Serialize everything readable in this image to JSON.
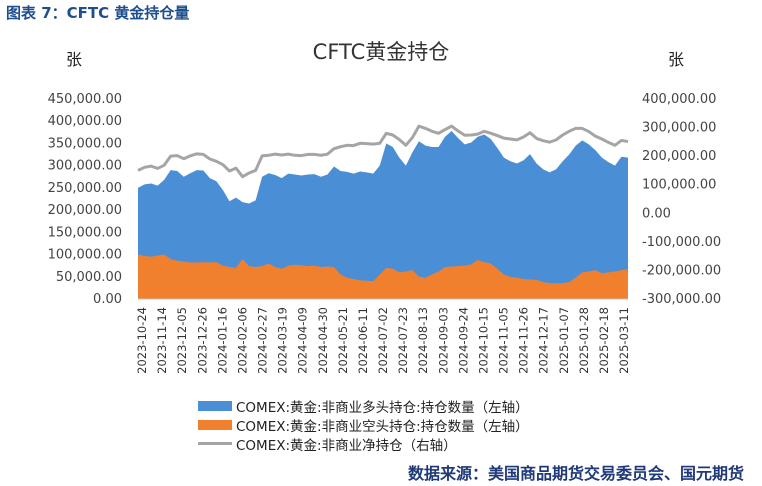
{
  "figure_header": "图表 7：CFTC 黄金持仓量",
  "left_unit": "张",
  "right_unit": "张",
  "source": "数据来源：美国商品期货交易委员会、国元期货",
  "colors": {
    "long": "#4a8fd6",
    "short": "#f07f2e",
    "net": "#a5a5a5"
  },
  "chart_data": {
    "type": "area",
    "title": "CFTC黄金持仓",
    "left_axis": {
      "range": [
        0,
        450000
      ],
      "ticks": [
        "0.00",
        "50,000.00",
        "100,000.00",
        "150,000.00",
        "200,000.00",
        "250,000.00",
        "300,000.00",
        "350,000.00",
        "400,000.00",
        "450,000.00"
      ]
    },
    "right_axis": {
      "range": [
        -300000,
        400000
      ],
      "ticks": [
        "-300,000.00",
        "-200,000.00",
        "-100,000.00",
        "0.00",
        "100,000.00",
        "200,000.00",
        "300,000.00",
        "400,000.00"
      ]
    },
    "x_tick_labels": [
      "2023-10-24",
      "2023-11-14",
      "2023-12-05",
      "2023-12-26",
      "2024-01-16",
      "2024-02-06",
      "2024-02-27",
      "2024-03-19",
      "2024-04-09",
      "2024-04-30",
      "2024-05-21",
      "2024-06-11",
      "2024-07-02",
      "2024-07-23",
      "2024-08-13",
      "2024-09-03",
      "2024-09-24",
      "2024-10-15",
      "2024-11-05",
      "2024-11-26",
      "2024-12-17",
      "2025-01-07",
      "2025-01-28",
      "2025-02-18",
      "2025-03-11"
    ],
    "series": [
      {
        "name": "COMEX:黄金:非商业多头持仓:持仓数量（左轴）",
        "axis": "left",
        "type": "area",
        "values": [
          250000,
          258000,
          260000,
          255000,
          268000,
          290000,
          288000,
          275000,
          283000,
          290000,
          289000,
          272000,
          265000,
          245000,
          220000,
          228000,
          218000,
          215000,
          222000,
          275000,
          283000,
          279000,
          272000,
          282000,
          280000,
          278000,
          280000,
          281000,
          275000,
          280000,
          298000,
          288000,
          286000,
          282000,
          287000,
          285000,
          282000,
          300000,
          350000,
          342000,
          318000,
          300000,
          330000,
          355000,
          345000,
          342000,
          342000,
          365000,
          378000,
          362000,
          348000,
          352000,
          365000,
          370000,
          360000,
          340000,
          318000,
          310000,
          305000,
          312000,
          326000,
          305000,
          292000,
          285000,
          292000,
          310000,
          325000,
          345000,
          357000,
          348000,
          335000,
          318000,
          308000,
          300000,
          320000,
          318000
        ]
      },
      {
        "name": "COMEX:黄金:非商业空头持仓:持仓数量（左轴）",
        "axis": "left",
        "type": "area",
        "values": [
          100000,
          97000,
          95000,
          98000,
          100000,
          90000,
          86000,
          84000,
          82000,
          82000,
          83000,
          82000,
          83000,
          75000,
          72000,
          70000,
          90000,
          74000,
          72000,
          74000,
          80000,
          72000,
          68000,
          75000,
          77000,
          76000,
          74000,
          75000,
          72000,
          73000,
          72000,
          55000,
          48000,
          45000,
          42000,
          41000,
          40000,
          55000,
          70000,
          68000,
          60000,
          62000,
          65000,
          50000,
          48000,
          55000,
          62000,
          72000,
          73000,
          74000,
          75000,
          78000,
          88000,
          83000,
          80000,
          68000,
          55000,
          50000,
          48000,
          45000,
          44000,
          43000,
          38000,
          36000,
          35000,
          36000,
          38000,
          48000,
          60000,
          62000,
          65000,
          58000,
          60000,
          62000,
          65000,
          67000
        ]
      },
      {
        "name": "COMEX:黄金:非商业净持仓（右轴）",
        "axis": "right",
        "type": "line",
        "values": [
          150000,
          161000,
          165000,
          157000,
          168000,
          200000,
          202000,
          191000,
          201000,
          208000,
          206000,
          190000,
          182000,
          170000,
          148000,
          158000,
          128000,
          141000,
          150000,
          201000,
          203000,
          207000,
          204000,
          207000,
          203000,
          202000,
          206000,
          206000,
          203000,
          207000,
          226000,
          233000,
          238000,
          237000,
          245000,
          244000,
          242000,
          245000,
          280000,
          274000,
          258000,
          238000,
          265000,
          305000,
          297000,
          287000,
          280000,
          293000,
          305000,
          288000,
          273000,
          274000,
          277000,
          287000,
          280000,
          272000,
          263000,
          260000,
          257000,
          267000,
          282000,
          262000,
          254000,
          249000,
          257000,
          274000,
          287000,
          297000,
          297000,
          286000,
          270000,
          260000,
          248000,
          238000,
          255000,
          251000
        ]
      }
    ],
    "grid": false,
    "legend_position": "bottom"
  }
}
